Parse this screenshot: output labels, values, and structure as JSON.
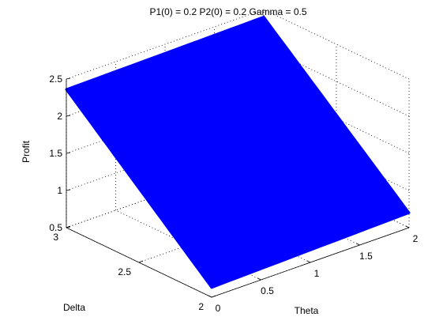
{
  "chart_data": {
    "type": "surface",
    "title": "P1(0) = 0.2 P2(0) = 0.2 Gamma = 0.5",
    "xlabel": "Theta",
    "ylabel": "Delta",
    "zlabel": "Profit",
    "xlim": [
      0,
      2
    ],
    "ylim": [
      2,
      3
    ],
    "zlim": [
      0.5,
      2.5
    ],
    "xticks": [
      "0",
      "0.5",
      "1",
      "1.5",
      "2"
    ],
    "yticks": [
      "2",
      "2.5",
      "3"
    ],
    "zticks": [
      "0.5",
      "1",
      "1.5",
      "2",
      "2.5"
    ],
    "grid": true,
    "surface_color": "#0000ff",
    "surface_corners": [
      {
        "theta": 0,
        "delta": 2,
        "profit": 0.63
      },
      {
        "theta": 2,
        "delta": 2,
        "profit": 0.7
      },
      {
        "theta": 2,
        "delta": 3,
        "profit": 2.4
      },
      {
        "theta": 0,
        "delta": 3,
        "profit": 2.36
      }
    ]
  }
}
